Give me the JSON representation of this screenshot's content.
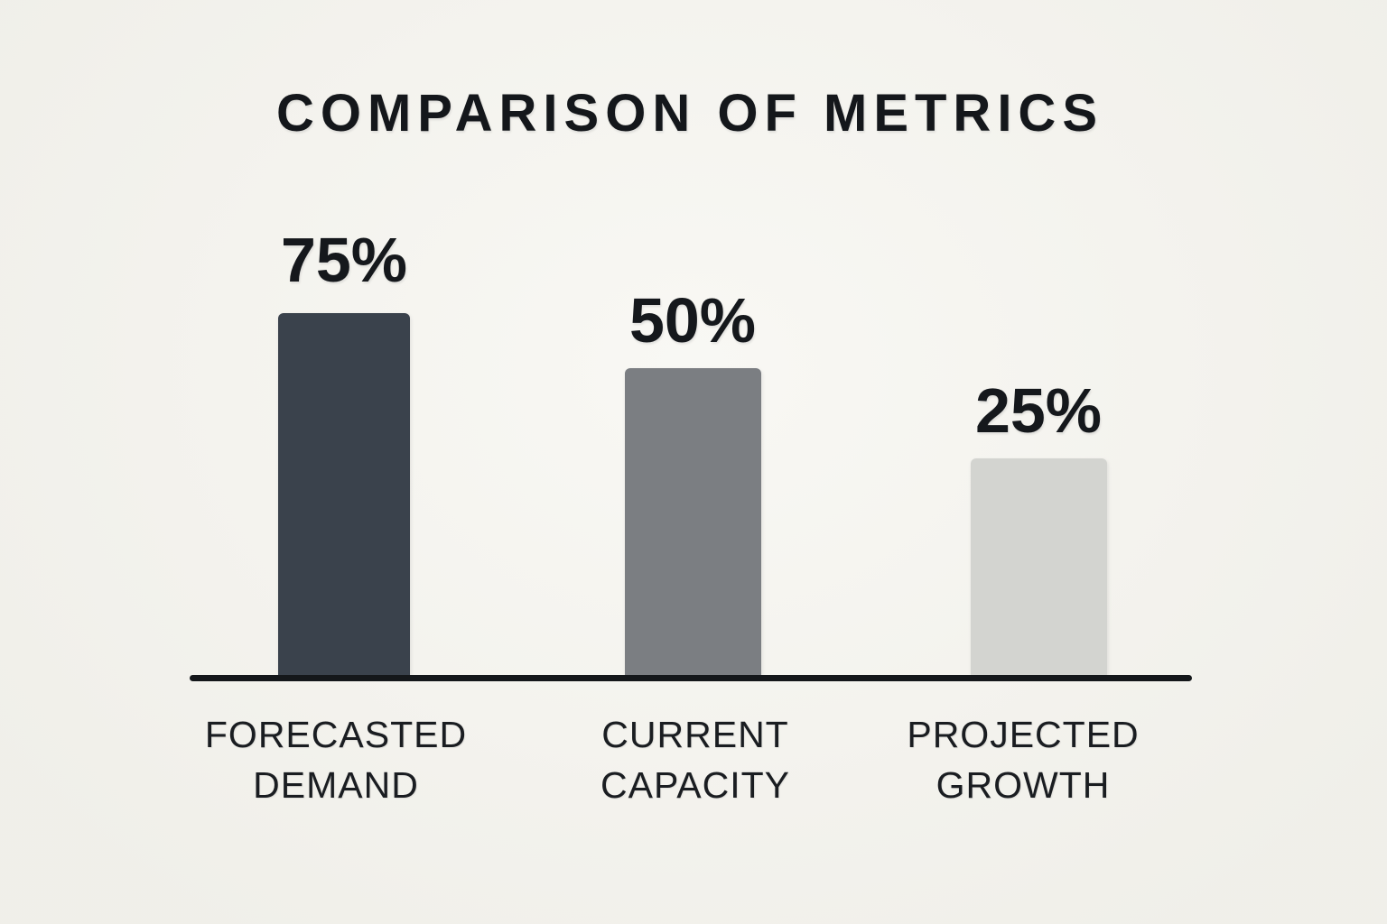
{
  "background_color": "#f5f4ee",
  "chart_data": {
    "type": "bar",
    "title": "COMPARISON OF METRICS",
    "categories": [
      "FORECASTED DEMAND",
      "CURRENT CAPACITY",
      "PROJECTED GROWTH"
    ],
    "values": [
      75,
      50,
      25
    ],
    "value_labels": [
      "75%",
      "50%",
      "25%"
    ],
    "xlabel": "",
    "ylabel": "",
    "ylim": [
      0,
      100
    ],
    "grid": false,
    "legend": false,
    "axis_color": "#14171a",
    "text_color": "#15181c",
    "bars": [
      {
        "label_line1": "FORECASTED",
        "label_line2": "DEMAND",
        "value": 75,
        "value_label": "75%",
        "color": "#3a424c"
      },
      {
        "label_line1": "CURRENT",
        "label_line2": "CAPACITY",
        "value": 50,
        "value_label": "50%",
        "color": "#7b7e82"
      },
      {
        "label_line1": "PROJECTED",
        "label_line2": "GROWTH",
        "value": 25,
        "value_label": "25%",
        "color": "#d3d4d0"
      }
    ]
  }
}
